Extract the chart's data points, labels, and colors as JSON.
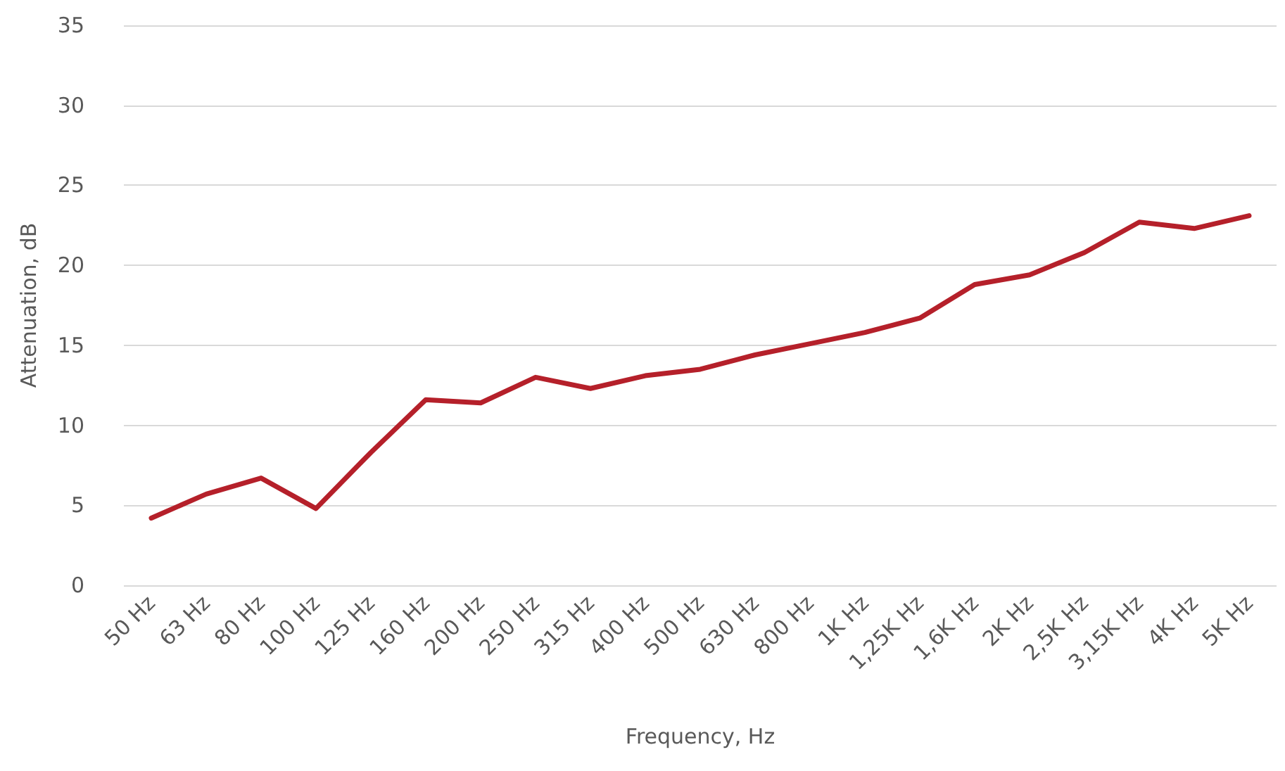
{
  "chart_data": {
    "type": "line",
    "xlabel": "Frequency, Hz",
    "ylabel": "Attenuation, dB",
    "categories": [
      "50 Hz",
      "63 Hz",
      "80 Hz",
      "100 Hz",
      "125 Hz",
      "160 Hz",
      "200 Hz",
      "250 Hz",
      "315 Hz",
      "400 Hz",
      "500 Hz",
      "630 Hz",
      "800 Hz",
      "1K Hz",
      "1,25K Hz",
      "1,6K Hz",
      "2K Hz",
      "2,5K Hz",
      "3,15K Hz",
      "4K Hz",
      "5K Hz"
    ],
    "series": [
      {
        "color": "#b5202a",
        "values": [
          4.2,
          5.7,
          6.7,
          4.8,
          8.3,
          11.6,
          11.4,
          13.0,
          12.3,
          13.1,
          13.5,
          14.4,
          15.1,
          15.8,
          16.7,
          18.8,
          19.4,
          20.8,
          22.7,
          22.3,
          23.1
        ]
      }
    ],
    "ylim": [
      0,
      35
    ],
    "yticks": [
      0,
      5,
      10,
      15,
      20,
      25,
      30,
      35
    ],
    "grid": "y",
    "marker": "none",
    "line_style": "solid"
  }
}
